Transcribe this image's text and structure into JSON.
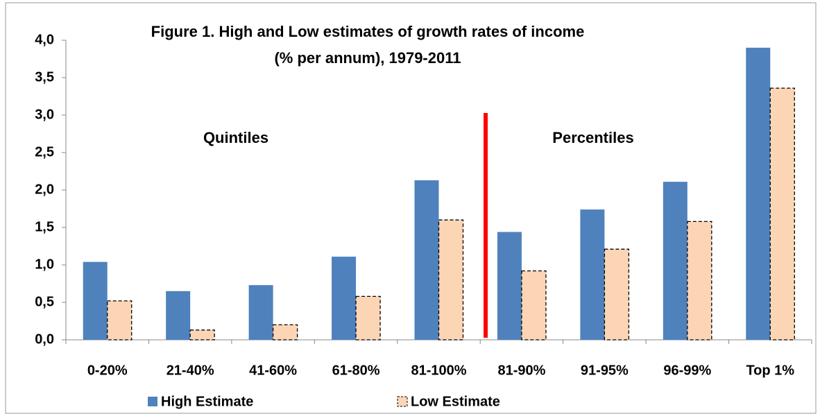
{
  "chart_data": {
    "type": "bar",
    "title": [
      "Figure 1. High and Low estimates of growth rates of income",
      "(% per annum), 1979-2011"
    ],
    "annotations": [
      "Quintiles",
      "Percentiles"
    ],
    "categories": [
      "0-20%",
      "21-40%",
      "41-60%",
      "61-80%",
      "81-100%",
      "81-90%",
      "91-95%",
      "96-99%",
      "Top 1%"
    ],
    "series": [
      {
        "name": "High Estimate",
        "color": "#4f81bd",
        "values": [
          1.04,
          0.65,
          0.73,
          1.11,
          2.13,
          1.44,
          1.74,
          2.11,
          3.9
        ]
      },
      {
        "name": "Low Estimate",
        "color": "#fcd5b5",
        "values": [
          0.52,
          0.13,
          0.2,
          0.58,
          1.6,
          0.92,
          1.21,
          1.58,
          3.36
        ]
      }
    ],
    "ylim": [
      0,
      4
    ],
    "yticks": [
      {
        "value": 0,
        "label": "0,0"
      },
      {
        "value": 0.5,
        "label": "0,5"
      },
      {
        "value": 1,
        "label": "1,0"
      },
      {
        "value": 1.5,
        "label": "1,5"
      },
      {
        "value": 2,
        "label": "2,0"
      },
      {
        "value": 2.5,
        "label": "2,5"
      },
      {
        "value": 3,
        "label": "3,0"
      },
      {
        "value": 3.5,
        "label": "3,5"
      },
      {
        "value": 4,
        "label": "4,0"
      }
    ],
    "grid": false,
    "legend": "bottom"
  }
}
